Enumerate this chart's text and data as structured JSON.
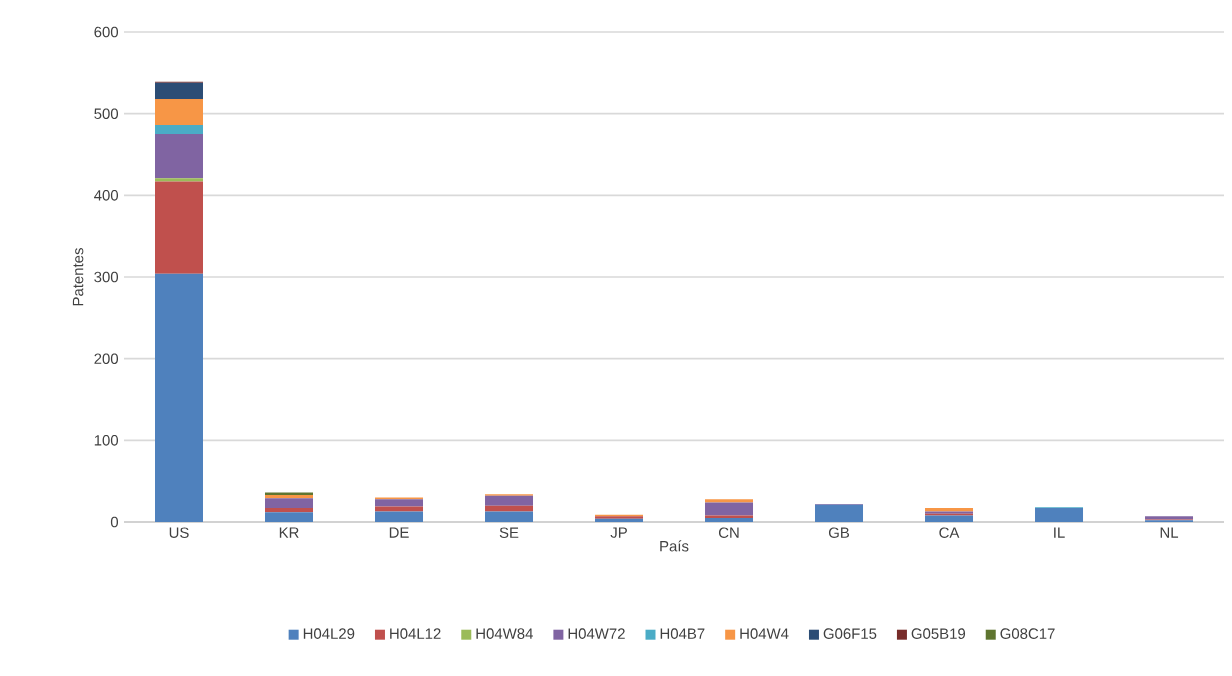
{
  "chart_data": {
    "type": "bar",
    "stacked": true,
    "xlabel": "País",
    "ylabel": "Patentes",
    "categories": [
      "US",
      "KR",
      "DE",
      "SE",
      "JP",
      "CN",
      "GB",
      "CA",
      "IL",
      "NL"
    ],
    "series": [
      {
        "name": "H04L29",
        "color": "#4f81bd",
        "values": [
          304,
          12,
          13,
          13,
          4,
          5,
          21,
          8,
          17,
          2
        ]
      },
      {
        "name": "H04L12",
        "color": "#c0504d",
        "values": [
          113,
          5,
          6,
          7,
          3,
          3,
          0,
          2,
          0,
          1
        ]
      },
      {
        "name": "H04W84",
        "color": "#9bbb59",
        "values": [
          4,
          0,
          0,
          0,
          0,
          0,
          0,
          0,
          0,
          0
        ]
      },
      {
        "name": "H04W72",
        "color": "#8064a2",
        "values": [
          54,
          12,
          9,
          12,
          0,
          16,
          1,
          3,
          0,
          4
        ]
      },
      {
        "name": "H04B7",
        "color": "#4bacc6",
        "values": [
          11,
          0,
          0,
          0,
          0,
          0,
          0,
          0,
          1,
          0
        ]
      },
      {
        "name": "H04W4",
        "color": "#f79646",
        "values": [
          32,
          4,
          2,
          2,
          2,
          4,
          0,
          4,
          0,
          0
        ]
      },
      {
        "name": "G06F15",
        "color": "#2c4d75",
        "values": [
          20,
          0,
          0,
          0,
          0,
          0,
          0,
          0,
          0,
          0
        ]
      },
      {
        "name": "G05B19",
        "color": "#772c2a",
        "values": [
          1,
          0,
          0,
          0,
          0,
          0,
          0,
          0,
          0,
          0
        ]
      },
      {
        "name": "G08C17",
        "color": "#5f7530",
        "values": [
          0,
          3,
          0,
          0,
          0,
          0,
          0,
          0,
          0,
          0
        ]
      }
    ],
    "ylim": [
      0,
      600
    ],
    "yticks": [
      0,
      100,
      200,
      300,
      400,
      500,
      600
    ],
    "grid": "y",
    "legend": "bottom"
  }
}
